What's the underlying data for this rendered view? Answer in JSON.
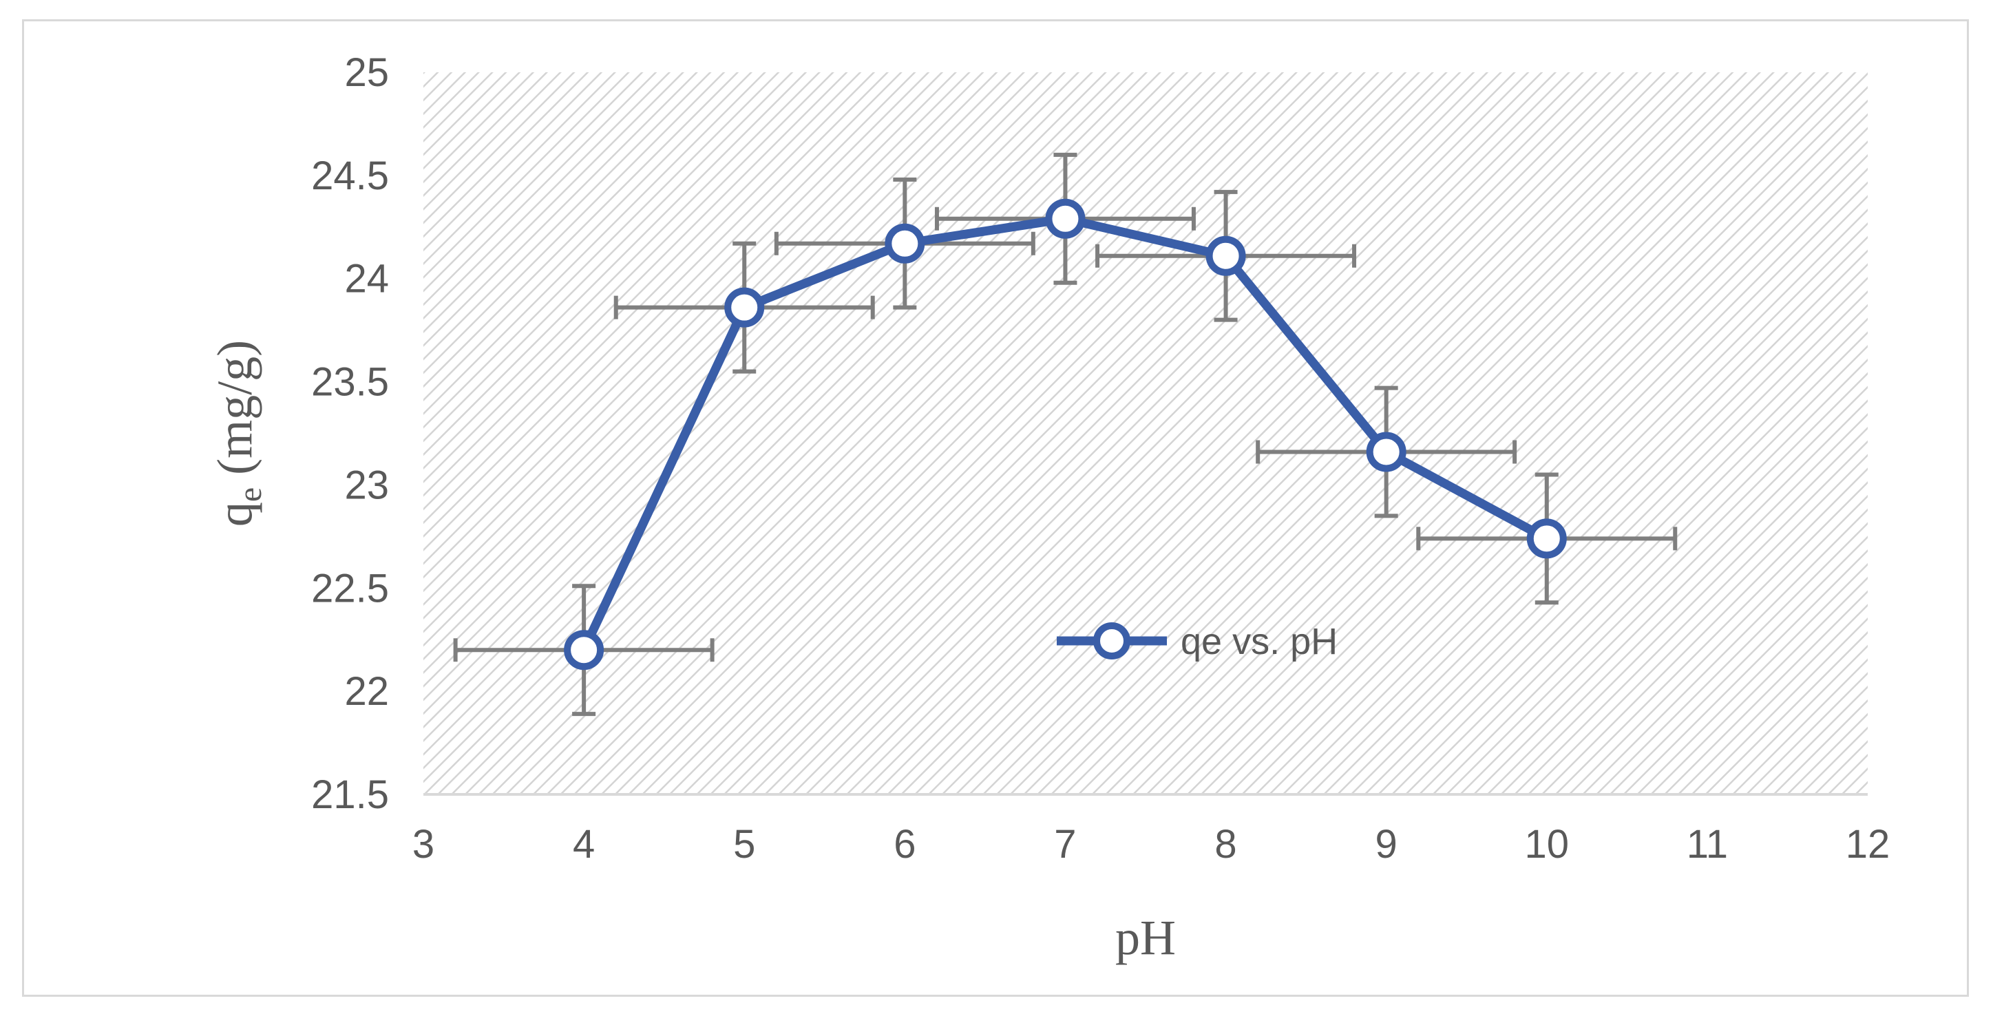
{
  "chart_data": {
    "type": "line",
    "xlabel": "pH",
    "ylabel_main": "q",
    "ylabel_sub": "e",
    "ylabel_unit": " (mg/g)",
    "xlim": [
      3,
      12
    ],
    "ylim": [
      21.5,
      25
    ],
    "x_ticks": [
      "3",
      "4",
      "5",
      "6",
      "7",
      "8",
      "9",
      "10",
      "11",
      "12"
    ],
    "y_ticks": [
      "21.5",
      "22",
      "22.5",
      "23",
      "23.5",
      "24",
      "24.5",
      "25"
    ],
    "grid": false,
    "plot_area_pattern": "diagonal-hatch",
    "legend_position": "center",
    "series": [
      {
        "name": "qe vs. pH",
        "color": "#3a5ea8",
        "marker": "hollow-circle",
        "x": [
          4,
          5,
          6,
          7,
          8,
          9,
          10
        ],
        "y": [
          22.2,
          23.86,
          24.17,
          24.29,
          24.11,
          23.16,
          22.74
        ],
        "x_error": 0.8,
        "y_error": 0.31
      }
    ],
    "error_bar_color": "#7f7f7f"
  }
}
